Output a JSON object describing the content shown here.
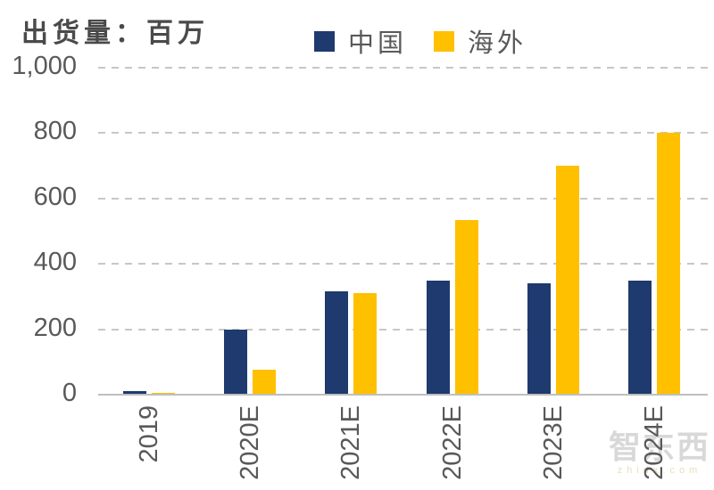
{
  "title": "出货量：百万",
  "colors": {
    "china": "#1E3A6E",
    "overseas": "#FFC000",
    "axis_text": "#595959",
    "title_text": "#4A4A4A",
    "gridline": "#C7C7C7",
    "baseline": "#BFBFBF"
  },
  "legend": [
    {
      "key": "china",
      "label": "中国",
      "color": "#1E3A6E"
    },
    {
      "key": "overseas",
      "label": "海外",
      "color": "#FFC000"
    }
  ],
  "watermark": {
    "text": "智东西",
    "subtext": "zhidx.com"
  },
  "chart_data": {
    "type": "bar",
    "title": "出货量：百万",
    "categories": [
      "2019",
      "2020E",
      "2021E",
      "2022E",
      "2023E",
      "2024E"
    ],
    "series": [
      {
        "name": "中国",
        "key": "china",
        "color": "#1E3A6E",
        "values": [
          10,
          200,
          315,
          350,
          340,
          350
        ]
      },
      {
        "name": "海外",
        "key": "overseas",
        "color": "#FFC000",
        "values": [
          5,
          75,
          310,
          535,
          700,
          800
        ]
      }
    ],
    "xlabel": "",
    "ylabel": "出货量：百万",
    "ylim": [
      0,
      1000
    ],
    "yticks": [
      0,
      200,
      400,
      600,
      800,
      1000
    ],
    "ytick_labels": [
      "0",
      "200",
      "400",
      "600",
      "800",
      "1,000"
    ],
    "grid": "horizontal-dashed",
    "legend_position": "top-center"
  }
}
